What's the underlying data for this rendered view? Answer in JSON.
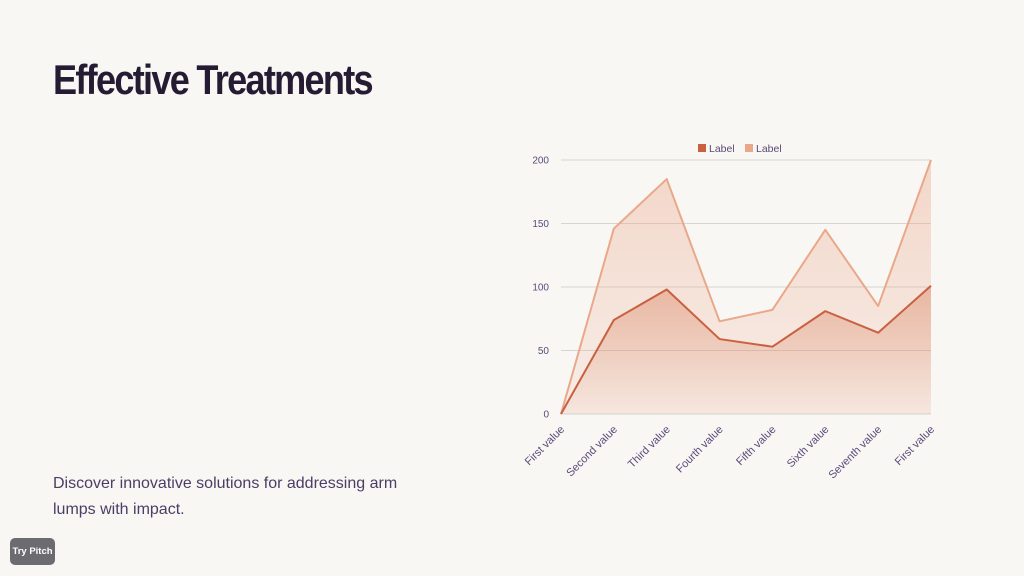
{
  "slide": {
    "title": "Effective Treatments",
    "body": "Discover innovative solutions for addressing arm lumps with impact.",
    "badge_label": "Try Pitch"
  },
  "chart_data": {
    "type": "area",
    "categories": [
      "First value",
      "Second value",
      "Third value",
      "Fourth value",
      "Fifth value",
      "Sixth value",
      "Seventh value",
      "First value"
    ],
    "series": [
      {
        "name": "Label",
        "color": "#c9603f",
        "values": [
          0,
          74,
          98,
          59,
          53,
          81,
          64,
          101
        ]
      },
      {
        "name": "Label",
        "color": "#e9a88a",
        "values": [
          0,
          146,
          185,
          73,
          82,
          145,
          85,
          200
        ]
      }
    ],
    "yticks": [
      0,
      50,
      100,
      150,
      200
    ],
    "ylim": [
      0,
      200
    ],
    "grid": true,
    "legend": "top-center",
    "title": "",
    "xlabel": "",
    "ylabel": ""
  }
}
